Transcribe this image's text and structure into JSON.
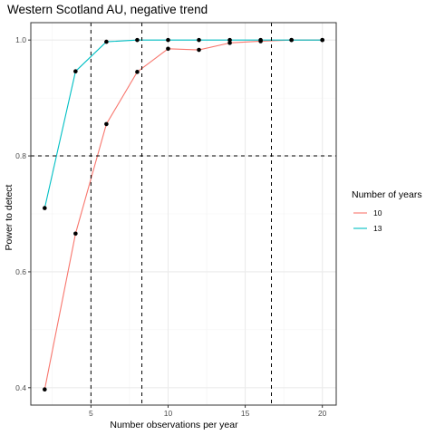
{
  "chart_data": {
    "type": "line",
    "title": "Western Scotland AU, negative trend",
    "xlabel": "Number observations per year",
    "ylabel": "Power to detect",
    "xlim": [
      1.1,
      20.9
    ],
    "ylim": [
      0.37,
      1.03
    ],
    "x_ticks": [
      5,
      10,
      15,
      20
    ],
    "y_ticks": [
      0.4,
      0.6,
      0.8,
      1.0
    ],
    "x_tick_labels": [
      "5",
      "10",
      "15",
      "20"
    ],
    "y_tick_labels": [
      "0.4",
      "0.6",
      "0.8",
      "1.0"
    ],
    "grid": true,
    "legend": {
      "title": "Number of years",
      "position": "right"
    },
    "series": [
      {
        "name": "10",
        "color": "#F8766D",
        "x": [
          2,
          4,
          6,
          8,
          10,
          12,
          14,
          16,
          18,
          20
        ],
        "y": [
          0.397,
          0.666,
          0.855,
          0.945,
          0.985,
          0.983,
          0.995,
          0.998,
          1.0,
          1.0
        ]
      },
      {
        "name": "13",
        "color": "#00BFC4",
        "x": [
          2,
          4,
          6,
          8,
          10,
          12,
          14,
          16,
          18,
          20
        ],
        "y": [
          0.71,
          0.946,
          0.997,
          1.0,
          1.0,
          1.0,
          1.0,
          1.0,
          1.0,
          1.0
        ]
      }
    ],
    "reference_lines": {
      "horizontal": [
        0.8
      ],
      "vertical": [
        5,
        8.3,
        16.7
      ]
    }
  }
}
